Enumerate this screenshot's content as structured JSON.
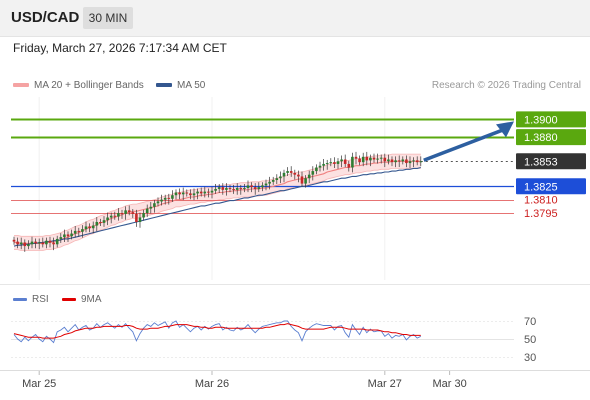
{
  "header": {
    "symbol": "USD/CAD",
    "timeframe": "30 MIN"
  },
  "datetime": "Friday, March 27, 2026 7:17:34 AM CET",
  "credit": "Research © 2026 Trading Central",
  "legend": [
    {
      "label": "MA 20 + Bollinger Bands",
      "color": "#f08080"
    },
    {
      "label": "MA 50",
      "color": "#34578f"
    }
  ],
  "rsi_legend": [
    {
      "label": "RSI",
      "color": "#5b7fd0"
    },
    {
      "label": "9MA",
      "color": "#e00000"
    }
  ],
  "colors": {
    "resistance": "#5aa80f",
    "support": "#1d4ed8",
    "minor_support": "#e05050",
    "last": "#333333",
    "arrow": "#2d5fa0"
  },
  "chart_data": [
    {
      "type": "candlestick",
      "ylim": [
        1.372,
        1.3925
      ],
      "xlabels": [
        {
          "label": "Mar 25",
          "index": 7
        },
        {
          "label": "Mar 26",
          "index": 55
        },
        {
          "label": "Mar 27",
          "index": 103
        },
        {
          "label": "Mar 30",
          "index": 121
        }
      ],
      "levels": [
        {
          "value": "1.3900",
          "kind": "resistance"
        },
        {
          "value": "1.3880",
          "kind": "resistance"
        },
        {
          "value": "1.3853",
          "kind": "last"
        },
        {
          "value": "1.3825",
          "kind": "support"
        },
        {
          "value": "1.3810",
          "kind": "minor_support"
        },
        {
          "value": "1.3795",
          "kind": "minor_support"
        }
      ],
      "close": [
        1.3763,
        1.376,
        1.3762,
        1.3758,
        1.376,
        1.3763,
        1.3761,
        1.3762,
        1.376,
        1.3764,
        1.3762,
        1.376,
        1.3766,
        1.3768,
        1.3771,
        1.3769,
        1.3772,
        1.3775,
        1.3774,
        1.3777,
        1.378,
        1.3778,
        1.3781,
        1.3785,
        1.3784,
        1.3787,
        1.379,
        1.3792,
        1.3791,
        1.3795,
        1.3794,
        1.3798,
        1.3796,
        1.3794,
        1.3785,
        1.379,
        1.3795,
        1.38,
        1.3802,
        1.3806,
        1.3808,
        1.381,
        1.3812,
        1.3811,
        1.3815,
        1.3818,
        1.3816,
        1.3818,
        1.3817,
        1.3815,
        1.3817,
        1.3819,
        1.3817,
        1.3819,
        1.3818,
        1.382,
        1.3822,
        1.3824,
        1.3821,
        1.3823,
        1.3822,
        1.3821,
        1.3823,
        1.3822,
        1.3823,
        1.3826,
        1.3824,
        1.3822,
        1.3824,
        1.3826,
        1.3828,
        1.383,
        1.3832,
        1.3834,
        1.3836,
        1.384,
        1.3842,
        1.384,
        1.3838,
        1.3836,
        1.3828,
        1.3834,
        1.3838,
        1.3842,
        1.3846,
        1.3848,
        1.385,
        1.3851,
        1.3852,
        1.385,
        1.3853,
        1.3855,
        1.385,
        1.3846,
        1.3858,
        1.3856,
        1.3852,
        1.3858,
        1.3854,
        1.3857,
        1.3855,
        1.3856,
        1.3857,
        1.3853,
        1.3855,
        1.3852,
        1.3854,
        1.3853,
        1.3855,
        1.3851,
        1.3853,
        1.3854,
        1.3852,
        1.3853
      ],
      "ma20": [
        1.3762,
        1.3762,
        1.3761,
        1.3761,
        1.3761,
        1.3761,
        1.3761,
        1.3761,
        1.3761,
        1.3762,
        1.3762,
        1.3763,
        1.3764,
        1.3765,
        1.3767,
        1.3768,
        1.377,
        1.3772,
        1.3773,
        1.3775,
        1.3777,
        1.3779,
        1.378,
        1.3782,
        1.3784,
        1.3785,
        1.3787,
        1.3789,
        1.379,
        1.3792,
        1.3793,
        1.3795,
        1.3796,
        1.3797,
        1.3797,
        1.3798,
        1.3799,
        1.38,
        1.3801,
        1.3802,
        1.3803,
        1.3805,
        1.3806,
        1.3807,
        1.3808,
        1.381,
        1.381,
        1.3811,
        1.3812,
        1.3813,
        1.3813,
        1.3814,
        1.3815,
        1.3815,
        1.3816,
        1.3816,
        1.3817,
        1.3818,
        1.3818,
        1.3819,
        1.3819,
        1.382,
        1.382,
        1.3821,
        1.3821,
        1.3821,
        1.3822,
        1.3822,
        1.3822,
        1.3823,
        1.3823,
        1.3824,
        1.3825,
        1.3826,
        1.3827,
        1.3828,
        1.383,
        1.3831,
        1.3832,
        1.3833,
        1.3833,
        1.3834,
        1.3835,
        1.3836,
        1.3837,
        1.3838,
        1.3839,
        1.3841,
        1.3842,
        1.3843,
        1.3844,
        1.3845,
        1.3846,
        1.3846,
        1.3847,
        1.3848,
        1.3848,
        1.3849,
        1.385,
        1.385,
        1.3851,
        1.3851,
        1.3852,
        1.3852,
        1.3852,
        1.3853,
        1.3853,
        1.3853,
        1.3853,
        1.3853,
        1.3853,
        1.3853,
        1.3853,
        1.3853
      ],
      "ma50": [
        1.3758,
        1.3759,
        1.3759,
        1.376,
        1.376,
        1.3761,
        1.3761,
        1.3762,
        1.3762,
        1.3763,
        1.3763,
        1.3764,
        1.3764,
        1.3765,
        1.3766,
        1.3766,
        1.3767,
        1.3768,
        1.3769,
        1.377,
        1.3771,
        1.3772,
        1.3773,
        1.3774,
        1.3775,
        1.3776,
        1.3777,
        1.3778,
        1.3779,
        1.378,
        1.3781,
        1.3782,
        1.3783,
        1.3784,
        1.3785,
        1.3786,
        1.3787,
        1.3788,
        1.3789,
        1.379,
        1.3791,
        1.3792,
        1.3793,
        1.3794,
        1.3795,
        1.3796,
        1.3797,
        1.3798,
        1.3799,
        1.38,
        1.3801,
        1.3802,
        1.3803,
        1.3803,
        1.3804,
        1.3805,
        1.3806,
        1.3806,
        1.3807,
        1.3808,
        1.3809,
        1.3809,
        1.381,
        1.3811,
        1.3812,
        1.3812,
        1.3813,
        1.3814,
        1.3815,
        1.3815,
        1.3816,
        1.3817,
        1.3818,
        1.3819,
        1.382,
        1.382,
        1.3821,
        1.3822,
        1.3823,
        1.3824,
        1.3825,
        1.3825,
        1.3826,
        1.3827,
        1.3828,
        1.3829,
        1.383,
        1.383,
        1.3831,
        1.3832,
        1.3833,
        1.3834,
        1.3834,
        1.3835,
        1.3836,
        1.3836,
        1.3837,
        1.3838,
        1.3838,
        1.3839,
        1.3839,
        1.384,
        1.384,
        1.3841,
        1.3841,
        1.3842,
        1.3842,
        1.3843,
        1.3843,
        1.3844,
        1.3844,
        1.3845,
        1.3845,
        1.3846
      ]
    },
    {
      "type": "line",
      "title": "RSI",
      "yticks": [
        "70",
        "50",
        "30"
      ],
      "ylim": [
        20,
        80
      ],
      "series": [
        {
          "name": "RSI",
          "values": [
            55,
            50,
            47,
            52,
            48,
            52,
            55,
            50,
            47,
            53,
            50,
            46,
            58,
            60,
            63,
            58,
            62,
            66,
            60,
            63,
            65,
            60,
            62,
            67,
            63,
            66,
            68,
            65,
            62,
            66,
            63,
            67,
            62,
            58,
            48,
            56,
            62,
            66,
            64,
            68,
            65,
            67,
            69,
            62,
            68,
            70,
            63,
            66,
            62,
            58,
            62,
            64,
            60,
            64,
            61,
            64,
            66,
            67,
            60,
            63,
            60,
            59,
            63,
            60,
            62,
            66,
            61,
            57,
            61,
            64,
            65,
            66,
            67,
            68,
            68,
            70,
            70,
            64,
            60,
            57,
            48,
            58,
            62,
            65,
            67,
            66,
            65,
            65,
            65,
            60,
            64,
            65,
            57,
            52,
            66,
            60,
            55,
            63,
            57,
            61,
            58,
            59,
            59,
            53,
            56,
            51,
            54,
            53,
            55,
            49,
            53,
            55,
            51,
            53
          ]
        },
        {
          "name": "9MA",
          "values": [
            56,
            55,
            54,
            53,
            52,
            52,
            52,
            52,
            51,
            51,
            51,
            51,
            52,
            53,
            55,
            56,
            57,
            59,
            60,
            61,
            62,
            62,
            62,
            63,
            63,
            64,
            64,
            64,
            64,
            64,
            64,
            65,
            65,
            64,
            62,
            61,
            61,
            61,
            62,
            62,
            62,
            63,
            64,
            64,
            65,
            66,
            66,
            66,
            66,
            65,
            64,
            64,
            63,
            63,
            62,
            62,
            63,
            63,
            63,
            62,
            62,
            62,
            62,
            62,
            62,
            62,
            62,
            62,
            62,
            62,
            63,
            63,
            64,
            65,
            66,
            66,
            67,
            66,
            65,
            64,
            62,
            61,
            61,
            61,
            61,
            61,
            61,
            62,
            63,
            63,
            63,
            63,
            62,
            61,
            61,
            61,
            61,
            61,
            60,
            60,
            60,
            60,
            59,
            58,
            58,
            57,
            57,
            56,
            55,
            55,
            54,
            54,
            54,
            54
          ]
        }
      ]
    }
  ]
}
